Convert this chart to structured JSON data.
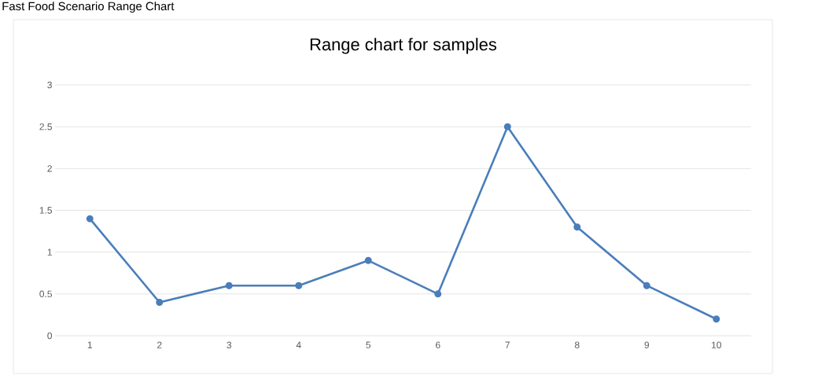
{
  "chart_data": {
    "type": "line",
    "title": "Range chart for samples",
    "annotations": [
      "Fast Food Scenario Range Chart"
    ],
    "categories": [
      "1",
      "2",
      "3",
      "4",
      "5",
      "6",
      "7",
      "8",
      "9",
      "10"
    ],
    "values": [
      1.4,
      0.4,
      0.6,
      0.6,
      0.9,
      0.5,
      2.5,
      1.3,
      0.6,
      0.2
    ],
    "color": "#4a7ebb",
    "marker": "circle",
    "line_style": "solid",
    "ylim": [
      0,
      3
    ],
    "yticks": [
      0,
      0.5,
      1,
      1.5,
      2,
      2.5,
      3
    ],
    "grid": "y"
  }
}
